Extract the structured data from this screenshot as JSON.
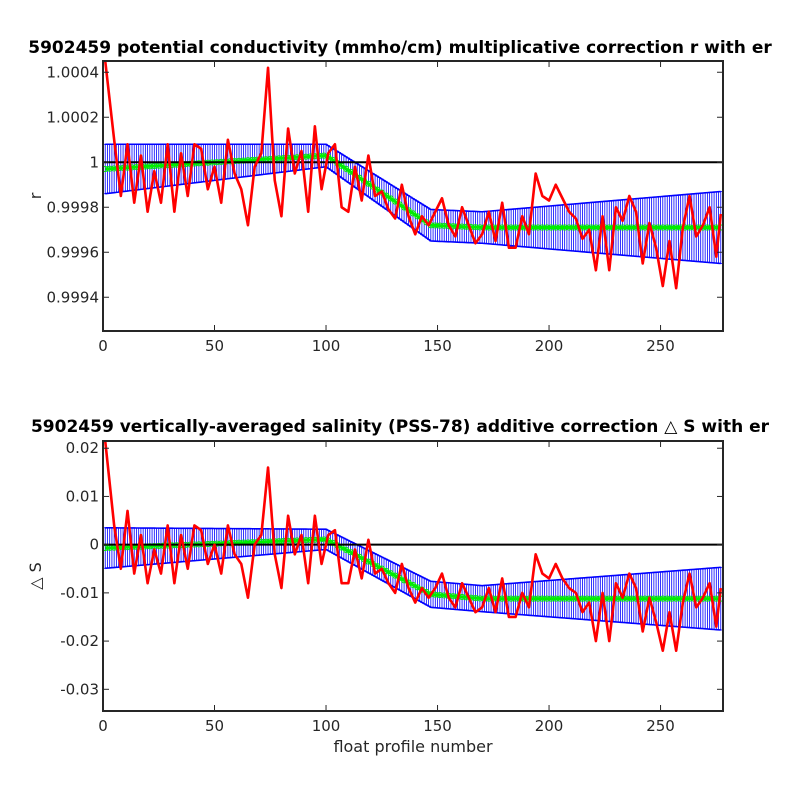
{
  "chart_data": [
    {
      "type": "line",
      "title": "5902459 potential conductivity (mmho/cm) multiplicative correction r with er",
      "xlabel": "",
      "ylabel": "r",
      "xlim": [
        0,
        278
      ],
      "ylim": [
        0.99925,
        1.00045
      ],
      "xticks": [
        0,
        50,
        100,
        150,
        200,
        250
      ],
      "yticks": [
        0.9994,
        0.9996,
        0.9998,
        1,
        1.0002,
        1.0004
      ],
      "ytick_labels": [
        "0.9994",
        "0.9996",
        "0.9998",
        "1",
        "1.0002",
        "1.0004"
      ],
      "reference_line": 1,
      "grid": false,
      "colors": {
        "raw": "#ff0000",
        "fit": "#00ee00",
        "error": "#0000ff",
        "reference": "#000000"
      },
      "correction_knots": {
        "x": [
          1,
          100,
          147,
          170,
          277
        ],
        "y": [
          0.99997,
          1.00003,
          0.99972,
          0.99971,
          0.99971
        ]
      },
      "error_knots": {
        "x": [
          1,
          100,
          147,
          170,
          277
        ],
        "e": [
          0.00011,
          5e-05,
          7e-05,
          7e-05,
          0.00016
        ]
      },
      "series": [
        {
          "x": [
            1,
            5,
            8,
            11,
            14,
            17,
            20,
            23,
            26,
            29,
            32,
            35,
            38,
            41,
            44,
            47,
            50,
            53,
            56,
            59,
            62,
            65,
            68,
            71,
            74,
            77,
            80,
            83,
            86,
            89,
            92,
            95,
            98,
            101,
            104,
            107,
            110,
            113,
            116,
            119,
            122,
            125,
            128,
            131,
            134,
            137,
            140,
            143,
            146,
            149,
            152,
            155,
            158,
            161,
            164,
            167,
            170,
            173,
            176,
            179,
            182,
            185,
            188,
            191,
            194,
            197,
            200,
            203,
            206,
            209,
            212,
            215,
            218,
            221,
            224,
            227,
            230,
            233,
            236,
            239,
            242,
            245,
            248,
            251,
            254,
            257,
            260,
            263,
            266,
            269,
            272,
            275,
            277
          ],
          "values": [
            1.00045,
            1.0001,
            0.99985,
            1.00008,
            0.99982,
            1.00003,
            0.99978,
            0.99996,
            0.99982,
            1.00008,
            0.99978,
            1.00004,
            0.99985,
            1.00008,
            1.00006,
            0.99988,
            0.99998,
            0.99982,
            1.0001,
            0.99995,
            0.99988,
            0.99972,
            0.99998,
            1.00004,
            1.00042,
            0.99992,
            0.99976,
            1.00015,
            0.99995,
            1.00005,
            0.99978,
            1.00016,
            0.99988,
            1.00004,
            1.00008,
            0.9998,
            0.99978,
            0.99998,
            0.99983,
            1.00003,
            0.99985,
            0.99987,
            0.99979,
            0.99975,
            0.9999,
            0.99976,
            0.99968,
            0.99976,
            0.99972,
            0.99978,
            0.99984,
            0.99972,
            0.99967,
            0.9998,
            0.99972,
            0.99964,
            0.99968,
            0.99978,
            0.99965,
            0.99982,
            0.99962,
            0.99962,
            0.99976,
            0.99968,
            0.99995,
            0.99985,
            0.99983,
            0.9999,
            0.99984,
            0.99978,
            0.99975,
            0.99966,
            0.9997,
            0.99952,
            0.99976,
            0.99952,
            0.9998,
            0.99974,
            0.99985,
            0.99978,
            0.99955,
            0.99973,
            0.99962,
            0.99945,
            0.99965,
            0.99944,
            0.99971,
            0.99985,
            0.99967,
            0.99972,
            0.9998,
            0.99958,
            0.99977
          ]
        }
      ]
    },
    {
      "type": "line",
      "title": "5902459 vertically-averaged salinity (PSS-78) additive correction △ S with er",
      "xlabel": "float profile number",
      "ylabel": "△ S",
      "xlim": [
        0,
        278
      ],
      "ylim": [
        -0.0345,
        0.0215
      ],
      "xticks": [
        0,
        50,
        100,
        150,
        200,
        250
      ],
      "yticks": [
        -0.03,
        -0.02,
        -0.01,
        0,
        0.01,
        0.02
      ],
      "ytick_labels": [
        "-0.03",
        "-0.02",
        "-0.01",
        "0",
        "0.01",
        "0.02"
      ],
      "reference_line": 0,
      "grid": false,
      "colors": {
        "raw": "#ff0000",
        "fit": "#00ee00",
        "error": "#0000ff",
        "reference": "#000000"
      },
      "correction_knots": {
        "x": [
          1,
          100,
          147,
          170,
          277
        ],
        "y": [
          -0.0007,
          0.0011,
          -0.0103,
          -0.0112,
          -0.0112
        ]
      },
      "error_knots": {
        "x": [
          1,
          100,
          147,
          170,
          277
        ],
        "e": [
          0.0042,
          0.0021,
          0.0027,
          0.0027,
          0.0065
        ]
      },
      "series": [
        {
          "x": [
            1,
            5,
            8,
            11,
            14,
            17,
            20,
            23,
            26,
            29,
            32,
            35,
            38,
            41,
            44,
            47,
            50,
            53,
            56,
            59,
            62,
            65,
            68,
            71,
            74,
            77,
            80,
            83,
            86,
            89,
            92,
            95,
            98,
            101,
            104,
            107,
            110,
            113,
            116,
            119,
            122,
            125,
            128,
            131,
            134,
            137,
            140,
            143,
            146,
            149,
            152,
            155,
            158,
            161,
            164,
            167,
            170,
            173,
            176,
            179,
            182,
            185,
            188,
            191,
            194,
            197,
            200,
            203,
            206,
            209,
            212,
            215,
            218,
            221,
            224,
            227,
            230,
            233,
            236,
            239,
            242,
            245,
            248,
            251,
            254,
            257,
            260,
            263,
            266,
            269,
            272,
            275,
            277
          ],
          "values": [
            0.0215,
            0.004,
            -0.005,
            0.007,
            -0.006,
            0.002,
            -0.008,
            -0.001,
            -0.006,
            0.004,
            -0.008,
            0.002,
            -0.005,
            0.004,
            0.003,
            -0.004,
            0.0,
            -0.006,
            0.004,
            -0.002,
            -0.004,
            -0.011,
            0.0,
            0.002,
            0.016,
            -0.002,
            -0.009,
            0.006,
            -0.002,
            0.002,
            -0.008,
            0.006,
            -0.004,
            0.002,
            0.003,
            -0.008,
            -0.008,
            -0.001,
            -0.007,
            0.001,
            -0.006,
            -0.005,
            -0.008,
            -0.01,
            -0.004,
            -0.009,
            -0.012,
            -0.009,
            -0.011,
            -0.009,
            -0.006,
            -0.011,
            -0.013,
            -0.008,
            -0.011,
            -0.014,
            -0.013,
            -0.009,
            -0.014,
            -0.007,
            -0.015,
            -0.015,
            -0.01,
            -0.013,
            -0.002,
            -0.006,
            -0.007,
            -0.004,
            -0.007,
            -0.009,
            -0.01,
            -0.014,
            -0.012,
            -0.02,
            -0.01,
            -0.02,
            -0.008,
            -0.011,
            -0.006,
            -0.009,
            -0.018,
            -0.011,
            -0.016,
            -0.022,
            -0.014,
            -0.022,
            -0.012,
            -0.006,
            -0.013,
            -0.011,
            -0.008,
            -0.017,
            -0.009
          ]
        }
      ]
    }
  ]
}
